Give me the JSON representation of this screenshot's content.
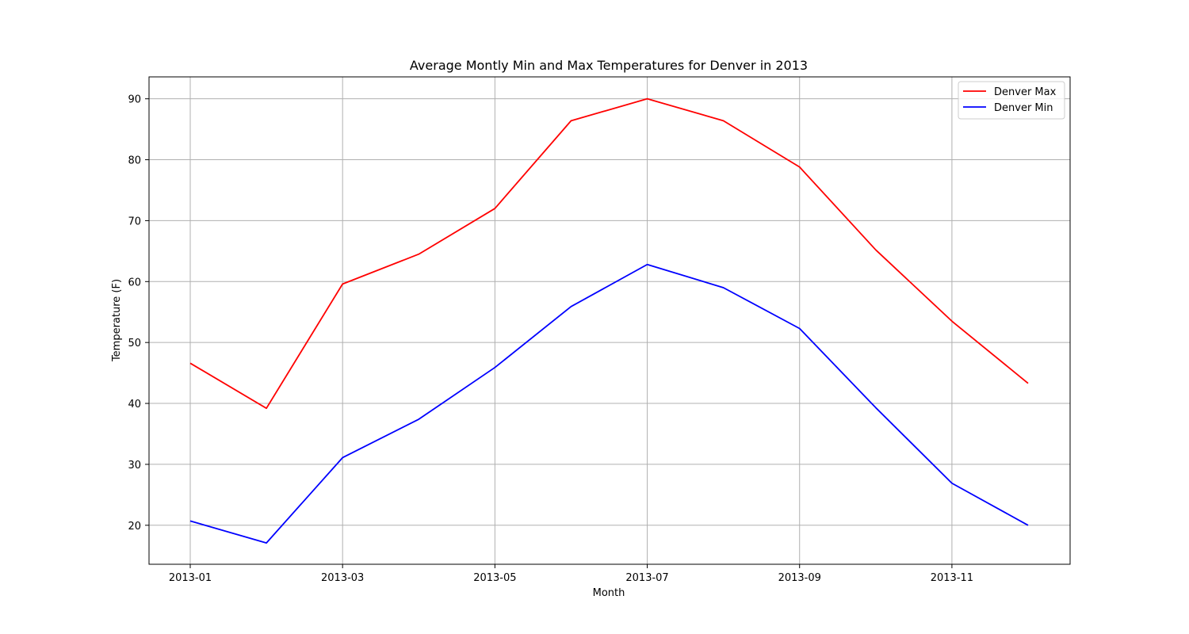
{
  "chart_data": {
    "type": "line",
    "title": "Average Montly Min and Max Temperatures for Denver in 2013",
    "xlabel": "Month",
    "ylabel": "Temperature (F)",
    "x": [
      "2013-01",
      "2013-02",
      "2013-03",
      "2013-04",
      "2013-05",
      "2013-06",
      "2013-07",
      "2013-08",
      "2013-09",
      "2013-10",
      "2013-11",
      "2013-12"
    ],
    "xticks": [
      "2013-01",
      "2013-03",
      "2013-05",
      "2013-07",
      "2013-09",
      "2013-11"
    ],
    "yticks": [
      20,
      30,
      40,
      50,
      60,
      70,
      80,
      90
    ],
    "ylim": [
      13.6,
      93.6
    ],
    "grid": true,
    "legend_position": "upper right",
    "series": [
      {
        "name": "Denver Max",
        "color": "#ff0000",
        "values": [
          46.6,
          39.2,
          59.6,
          64.5,
          72.0,
          86.4,
          90.0,
          86.4,
          78.8,
          65.2,
          53.5,
          43.3
        ]
      },
      {
        "name": "Denver Min",
        "color": "#0000ff",
        "values": [
          20.7,
          17.1,
          31.1,
          37.4,
          45.9,
          55.9,
          62.8,
          59.0,
          52.3,
          39.3,
          26.9,
          20.0
        ]
      }
    ]
  }
}
